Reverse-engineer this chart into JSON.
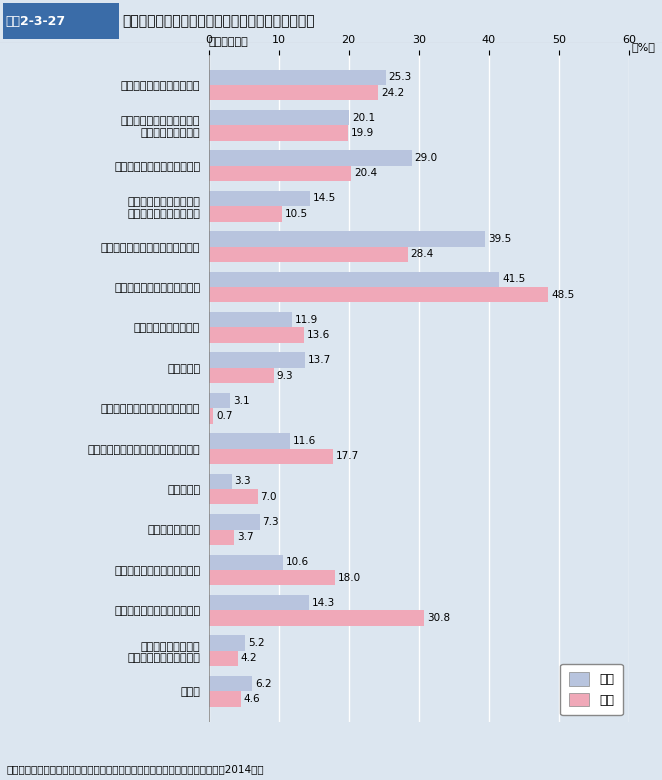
{
  "title_box": "図表2-3-27",
  "title_main": "もっと休みが取れた場合の休日の過ごし方（性別）",
  "subtitle": "（複数回答）",
  "categories": [
    "何もせずにゴロ寝で過ごす",
    "テレビを見たり、ラジオを\n聴いたりして過ごす",
    "インターネットをして過ごす",
    "子どもと遊んだりして、\n家族とともに家で過ごす",
    "運動・スポーツ・散歩などをする",
    "ドライブや小旅行に出かける",
    "新聞・雑誌・本を読む",
    "音楽を聴く",
    "碁・将棋・マージャンなどをする",
    "手芸・庭いじり・日曜大工などをする",
    "家事をする",
    "仕事・勉強をする",
    "映画等の娯楽施設に出かける",
    "ショッピング・買い物をする",
    "地域や社会のための\nボランティア活動をする",
    "その他"
  ],
  "male_values": [
    25.3,
    20.1,
    29.0,
    14.5,
    39.5,
    41.5,
    11.9,
    13.7,
    3.1,
    11.6,
    3.3,
    7.3,
    10.6,
    14.3,
    5.2,
    6.2
  ],
  "female_values": [
    24.2,
    19.9,
    20.4,
    10.5,
    28.4,
    48.5,
    13.6,
    9.3,
    0.7,
    17.7,
    7.0,
    3.7,
    18.0,
    30.8,
    4.2,
    4.6
  ],
  "male_color": "#b8c4de",
  "female_color": "#f0a8b8",
  "bg_color": "#dce6f0",
  "plot_bg": "#dce6f0",
  "title_box_color": "#3a6ca8",
  "title_bg_color": "#ffffff",
  "xlim": 60,
  "xticks": [
    0,
    10,
    20,
    30,
    40,
    50,
    60
  ],
  "bar_height": 0.38,
  "legend_labels": [
    "男性",
    "女性"
  ],
  "source": "資料：厚生労働省政策統括官付政策評価官室委託「健康意識に関する調査」（2014年）"
}
